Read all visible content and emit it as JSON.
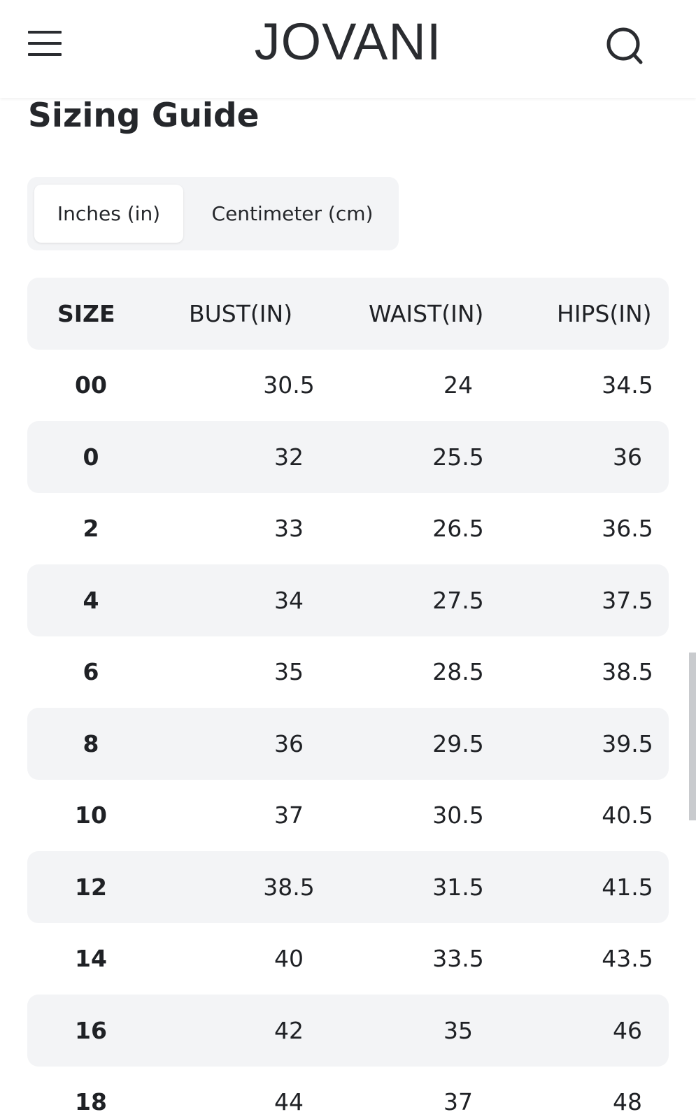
{
  "header": {
    "brand": "JOVANI",
    "menu_icon": "hamburger-menu-icon",
    "search_icon": "search-icon"
  },
  "page": {
    "title": "Sizing Guide"
  },
  "unit_toggle": {
    "options": [
      "Inches (in)",
      "Centimeter (cm)"
    ],
    "selected": "Inches (in)"
  },
  "size_table": {
    "columns": [
      "SIZE",
      "BUST(IN)",
      "WAIST(IN)",
      "HIPS(IN)"
    ],
    "rows": [
      [
        "00",
        "30.5",
        "24",
        "34.5"
      ],
      [
        "0",
        "32",
        "25.5",
        "36"
      ],
      [
        "2",
        "33",
        "26.5",
        "36.5"
      ],
      [
        "4",
        "34",
        "27.5",
        "37.5"
      ],
      [
        "6",
        "35",
        "28.5",
        "38.5"
      ],
      [
        "8",
        "36",
        "29.5",
        "39.5"
      ],
      [
        "10",
        "37",
        "30.5",
        "40.5"
      ],
      [
        "12",
        "38.5",
        "31.5",
        "41.5"
      ],
      [
        "14",
        "40",
        "33.5",
        "43.5"
      ],
      [
        "16",
        "42",
        "35",
        "46"
      ],
      [
        "18",
        "44",
        "37",
        "48"
      ]
    ]
  },
  "colors": {
    "text": "#1f2125",
    "shaded_row": "#f3f4f6",
    "toggle_bg": "#f3f4f6",
    "toggle_selected": "#ffffff"
  }
}
